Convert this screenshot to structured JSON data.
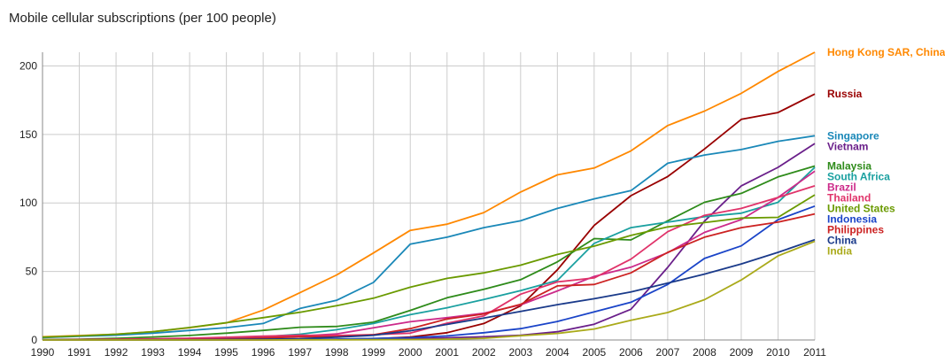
{
  "chart_data": {
    "type": "line",
    "title": "Mobile cellular subscriptions (per 100 people)",
    "xlabel": "",
    "ylabel": "",
    "ylim": [
      0,
      210
    ],
    "yticks": [
      0,
      50,
      100,
      150,
      200
    ],
    "grid": true,
    "legend": "right-end labels",
    "x": [
      1990,
      1991,
      1992,
      1993,
      1994,
      1995,
      1996,
      1997,
      1998,
      1999,
      2000,
      2001,
      2002,
      2003,
      2004,
      2005,
      2006,
      2007,
      2008,
      2009,
      2010,
      2011
    ],
    "series": [
      {
        "name": "Hong Kong SAR, China",
        "color": "#ff8800",
        "values": [
          2.3,
          3.2,
          4.2,
          6,
          9,
          12.5,
          21.8,
          34.5,
          47.5,
          63.5,
          80,
          84.5,
          93,
          108,
          120.5,
          125.5,
          138,
          156.5,
          167,
          180,
          196,
          210
        ]
      },
      {
        "name": "Russia",
        "color": "#990000",
        "values": [
          0,
          0,
          0,
          0,
          0.1,
          0.1,
          0.2,
          0.3,
          0.5,
          0.9,
          2.2,
          5.3,
          12,
          24.9,
          51.2,
          83.6,
          105.3,
          119.3,
          139.4,
          161,
          166,
          179.5
        ]
      },
      {
        "name": "Singapore",
        "color": "#1a88b8",
        "values": [
          1.7,
          2.7,
          3.5,
          5,
          7,
          9,
          12,
          23,
          29,
          42,
          70,
          75,
          82,
          87,
          96,
          103,
          109,
          129,
          135,
          139,
          145,
          149
        ]
      },
      {
        "name": "Vietnam",
        "color": "#6a1f8a",
        "values": [
          0,
          0,
          0,
          0,
          0,
          0,
          0.1,
          0.2,
          0.3,
          0.4,
          1,
          1.6,
          2.3,
          3.4,
          6,
          11.5,
          22.4,
          53,
          86.7,
          112.5,
          126,
          143.4
        ]
      },
      {
        "name": "Malaysia",
        "color": "#2e8b1a",
        "values": [
          0.3,
          0.6,
          1.2,
          2.2,
          3.3,
          5,
          7,
          9.3,
          9.9,
          13,
          21.6,
          30.8,
          37,
          44,
          57,
          74,
          73,
          87,
          100.5,
          107,
          119,
          127
        ]
      },
      {
        "name": "South Africa",
        "color": "#1aa0a0",
        "values": [
          0,
          0,
          0,
          0.1,
          0.5,
          1.3,
          2.3,
          4.2,
          7.5,
          12,
          18.5,
          23.5,
          29.5,
          36,
          43.5,
          70.5,
          82,
          86,
          90,
          92.5,
          100.5,
          126
        ]
      },
      {
        "name": "Brazil",
        "color": "#cc2a8a",
        "values": [
          0,
          0,
          0,
          0.1,
          0.4,
          0.8,
          1.6,
          2.8,
          4.4,
          8.9,
          13.3,
          16.3,
          19.5,
          25.6,
          35.8,
          46.4,
          53.1,
          63.7,
          78.5,
          87.9,
          104,
          123.2
        ]
      },
      {
        "name": "Thailand",
        "color": "#e0336a",
        "values": [
          0.1,
          0.3,
          0.6,
          0.9,
          1.3,
          2,
          2.8,
          3.4,
          3.3,
          3.9,
          5,
          12.3,
          17.6,
          33.4,
          42.4,
          45.3,
          59,
          79,
          91,
          96,
          104,
          112.5
        ]
      },
      {
        "name": "United States",
        "color": "#6a9a00",
        "values": [
          2.1,
          3,
          4.2,
          6.1,
          9.1,
          12.6,
          16.3,
          20.2,
          25,
          30.5,
          38.5,
          45,
          49,
          54.6,
          62.4,
          68.5,
          76.3,
          82.5,
          85.7,
          89,
          89.5,
          105.9
        ]
      },
      {
        "name": "Indonesia",
        "color": "#1a44c8",
        "values": [
          0,
          0,
          0,
          0,
          0,
          0.1,
          0.3,
          0.5,
          0.6,
          1.1,
          1.7,
          3,
          5.3,
          8.3,
          13.5,
          20.5,
          27.5,
          40.5,
          59.5,
          68.7,
          87.8,
          97.7
        ]
      },
      {
        "name": "Philippines",
        "color": "#cc2222",
        "values": [
          0,
          0.1,
          0.1,
          0.2,
          0.3,
          0.7,
          1.4,
          2.3,
          2.4,
          3.8,
          8.3,
          15.3,
          19,
          26,
          39.5,
          40.5,
          49,
          64,
          75,
          82,
          86,
          92
        ]
      },
      {
        "name": "China",
        "color": "#1a3a8a",
        "values": [
          0,
          0,
          0,
          0.1,
          0.1,
          0.3,
          0.6,
          1,
          2,
          3.4,
          6.7,
          11.4,
          16,
          20.9,
          25.8,
          30.1,
          35.1,
          41.5,
          48.1,
          55.5,
          64,
          73.2
        ]
      },
      {
        "name": "India",
        "color": "#aaaa1a",
        "values": [
          0,
          0,
          0,
          0,
          0,
          0,
          0,
          0.1,
          0.1,
          0.2,
          0.3,
          0.6,
          1.2,
          3.1,
          4.8,
          8,
          14.4,
          20,
          29.4,
          43.8,
          61.4,
          72
        ]
      }
    ]
  }
}
